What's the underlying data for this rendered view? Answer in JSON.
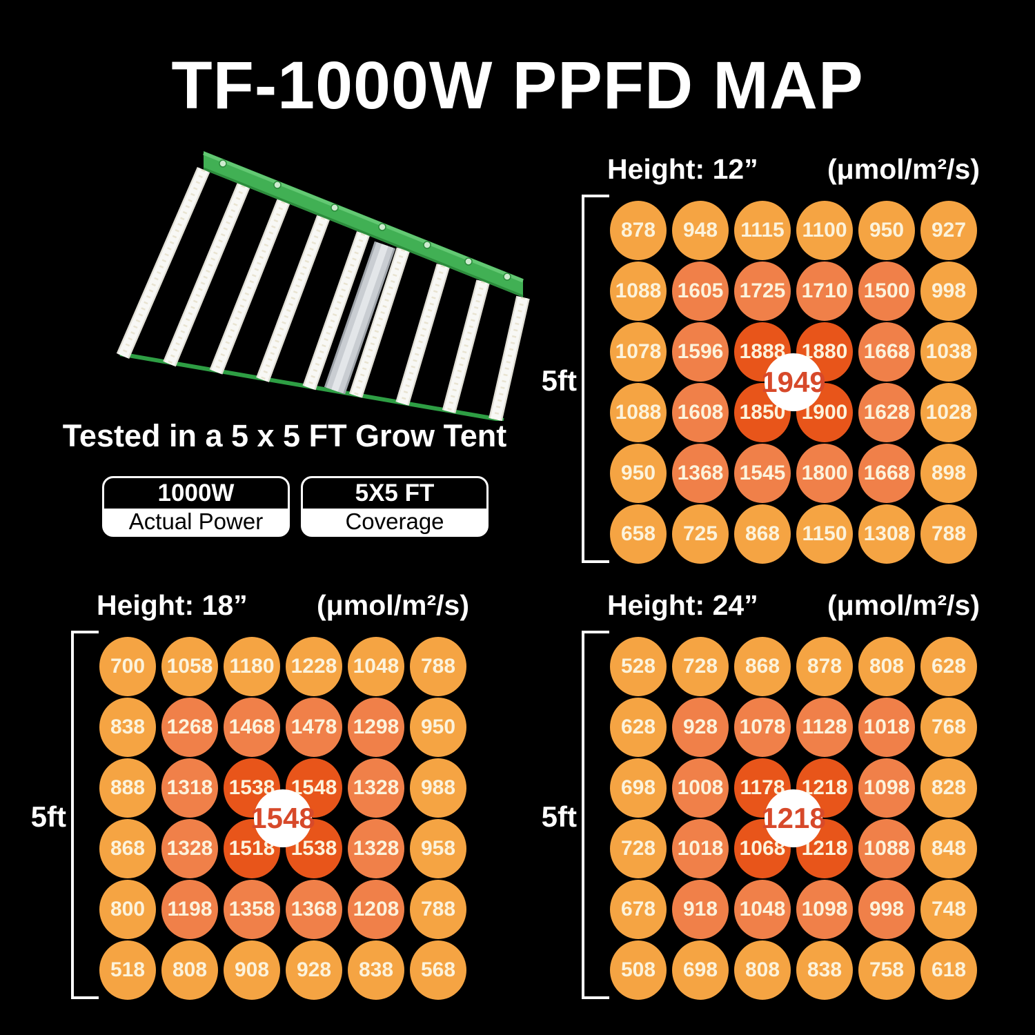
{
  "title": "TF-1000W PPFD MAP",
  "product": {
    "image_label": "TF-1000W LED grow light with white light bars on a green frame",
    "tested_note": "Tested in a 5 x 5 FT Grow Tent",
    "badges": [
      {
        "value": "1000W",
        "label": "Actual Power"
      },
      {
        "value": "5X5 FT",
        "label": "Coverage"
      }
    ]
  },
  "palette": {
    "page-bg": "#000000",
    "circle-light": "#F5A443",
    "circle-mid": "#F08049",
    "circle-dark": "#E8551A",
    "circle-text": "#FCF3DC",
    "center-bg": "#FFFFFF",
    "center-text": "#D7492A",
    "rail-green": "#41B054",
    "bar-white": "#F8F8F5",
    "channel-grey": "#C9CDD2"
  },
  "chart_data": [
    {
      "type": "heatmap",
      "id": "height-12",
      "title": "Height: 12”",
      "units": "(μmol/m²/s)",
      "side_label": "5ft",
      "rows": 6,
      "cols": 6,
      "center_value": 1949,
      "values": [
        [
          878,
          948,
          1115,
          1100,
          950,
          927
        ],
        [
          1088,
          1605,
          1725,
          1710,
          1500,
          998
        ],
        [
          1078,
          1596,
          1888,
          1880,
          1668,
          1038
        ],
        [
          1088,
          1608,
          1850,
          1900,
          1628,
          1028
        ],
        [
          950,
          1368,
          1545,
          1800,
          1668,
          898
        ],
        [
          658,
          725,
          868,
          1150,
          1308,
          788
        ]
      ]
    },
    {
      "type": "heatmap",
      "id": "height-18",
      "title": "Height: 18”",
      "units": "(μmol/m²/s)",
      "side_label": "5ft",
      "rows": 6,
      "cols": 6,
      "center_value": 1548,
      "values": [
        [
          700,
          1058,
          1180,
          1228,
          1048,
          788
        ],
        [
          838,
          1268,
          1468,
          1478,
          1298,
          950
        ],
        [
          888,
          1318,
          1538,
          1548,
          1328,
          988
        ],
        [
          868,
          1328,
          1518,
          1538,
          1328,
          958
        ],
        [
          800,
          1198,
          1358,
          1368,
          1208,
          788
        ],
        [
          518,
          808,
          908,
          928,
          838,
          568
        ]
      ]
    },
    {
      "type": "heatmap",
      "id": "height-24",
      "title": "Height: 24”",
      "units": "(μmol/m²/s)",
      "side_label": "5ft",
      "rows": 6,
      "cols": 6,
      "center_value": 1218,
      "values": [
        [
          528,
          728,
          868,
          878,
          808,
          628
        ],
        [
          628,
          928,
          1078,
          1128,
          1018,
          768
        ],
        [
          698,
          1008,
          1178,
          1218,
          1098,
          828
        ],
        [
          728,
          1018,
          1068,
          1218,
          1088,
          848
        ],
        [
          678,
          918,
          1048,
          1098,
          998,
          748
        ],
        [
          508,
          698,
          808,
          838,
          758,
          618
        ]
      ]
    }
  ]
}
